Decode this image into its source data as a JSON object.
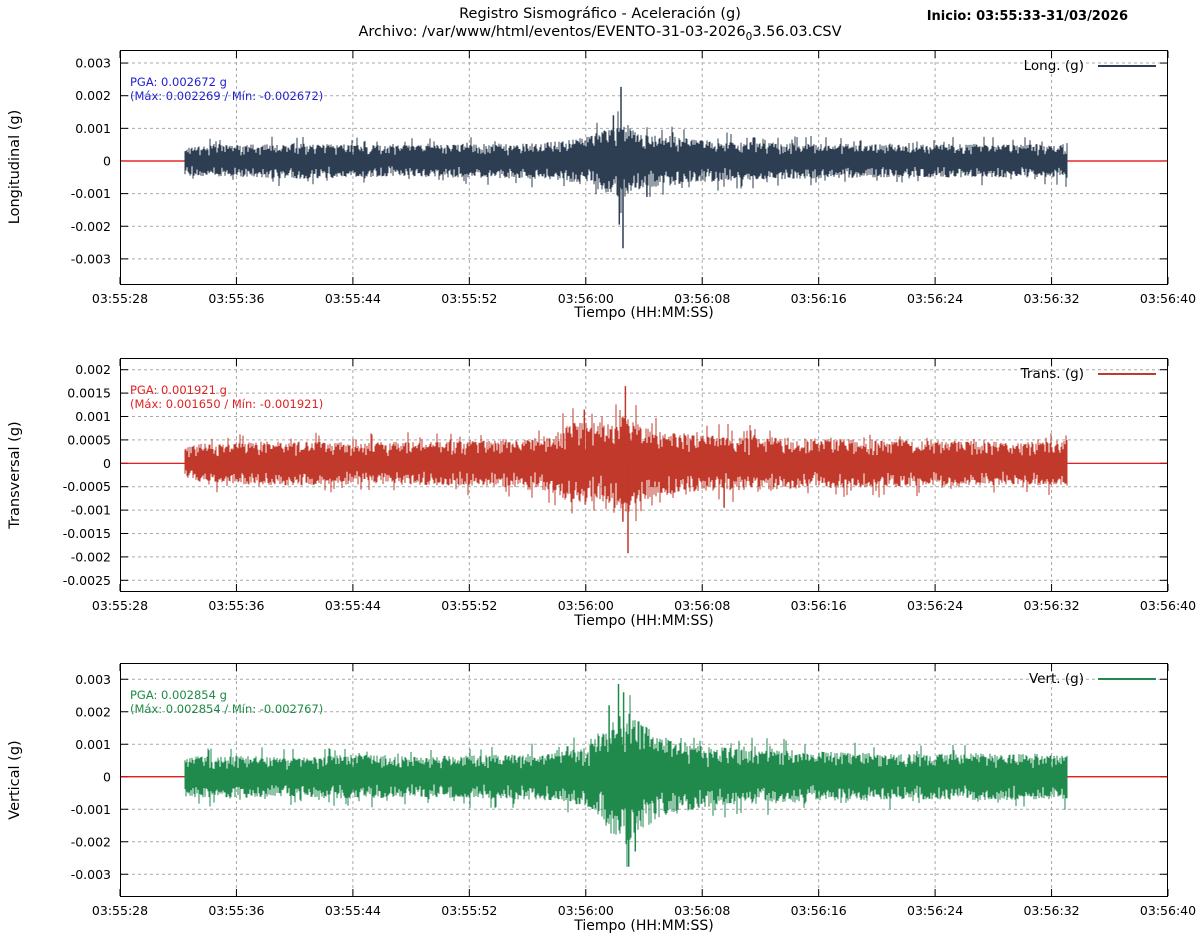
{
  "header": {
    "title": "Registro Sismográfico - Aceleración (g)",
    "subtitle_prefix": "Archivo: /var/www/html/eventos/EVENTO-31-03-2026",
    "subtitle_sub": "0",
    "subtitle_suffix": "3.56.03.CSV",
    "inicio": "Inicio: 03:55:33-31/03/2026"
  },
  "x_axis": {
    "label": "Tiempo (HH:MM:SS)",
    "tick_labels": [
      "03:55:28",
      "03:55:36",
      "03:55:44",
      "03:55:52",
      "03:56:00",
      "03:56:08",
      "03:56:16",
      "03:56:24",
      "03:56:32",
      "03:56:40"
    ],
    "tick_seconds": [
      0,
      8,
      16,
      24,
      32,
      40,
      48,
      56,
      64,
      72
    ],
    "range_s": [
      0,
      72
    ],
    "start_time": "03:55:28"
  },
  "style": {
    "grid_color": "#a9a9a9",
    "zero_line_color": "#e10000",
    "border_color": "#000000",
    "background": "#ffffff"
  },
  "chart_data": [
    {
      "type": "line",
      "name": "longitudinal",
      "title": "Long. (g)",
      "legend": "Long. (g)",
      "ylabel": "Longitudinal (g)",
      "xlabel": "Tiempo (HH:MM:SS)",
      "color": "#2e3e52",
      "annotation_color": "#2222cc",
      "pga_line1": "PGA: 0.002672 g",
      "pga_line2": "(Máx: 0.002269 / Mín: -0.002672)",
      "pga": 0.002672,
      "max": 0.002269,
      "min": -0.002672,
      "y_tick_labels": [
        "0.003",
        "0.002",
        "0.001",
        "0",
        "-0.001",
        "-0.002",
        "-0.003"
      ],
      "y_tick_values": [
        0.003,
        0.002,
        0.001,
        0,
        -0.001,
        -0.002,
        -0.003
      ],
      "ylim": [
        -0.0038,
        0.0034
      ],
      "signal_start_s": 4.4,
      "signal_end_s": 65.1,
      "envelope_g_vs_s": [
        [
          4.4,
          0.00045
        ],
        [
          8,
          0.0005
        ],
        [
          12,
          0.00055
        ],
        [
          16,
          0.0005
        ],
        [
          20,
          0.00048
        ],
        [
          24,
          0.00052
        ],
        [
          28,
          0.00055
        ],
        [
          30,
          0.0006
        ],
        [
          31.5,
          0.0007
        ],
        [
          33,
          0.0009
        ],
        [
          34,
          0.0011
        ],
        [
          34.6,
          0.0012
        ],
        [
          35.5,
          0.0009
        ],
        [
          37,
          0.0008
        ],
        [
          39,
          0.0007
        ],
        [
          42,
          0.0006
        ],
        [
          46,
          0.00055
        ],
        [
          50,
          0.00052
        ],
        [
          54,
          0.0005
        ],
        [
          58,
          0.00052
        ],
        [
          62,
          0.0005
        ],
        [
          65.1,
          0.00055
        ]
      ],
      "spikes_g_at_s": [
        [
          34.42,
          0.002269
        ],
        [
          34.56,
          -0.002672
        ],
        [
          34.3,
          -0.00195
        ],
        [
          33.9,
          0.0014
        ],
        [
          36.2,
          -0.0011
        ]
      ],
      "seed": 11
    },
    {
      "type": "line",
      "name": "transversal",
      "title": "Trans. (g)",
      "legend": "Trans. (g)",
      "ylabel": "Transversal (g)",
      "xlabel": "Tiempo (HH:MM:SS)",
      "color": "#c0392b",
      "annotation_color": "#e02222",
      "pga_line1": "PGA: 0.001921 g",
      "pga_line2": "(Máx: 0.001650 / Mín: -0.001921)",
      "pga": 0.001921,
      "max": 0.00165,
      "min": -0.001921,
      "y_tick_labels": [
        "0.002",
        "0.0015",
        "0.001",
        "0.0005",
        "0",
        "-0.0005",
        "-0.001",
        "-0.0015",
        "-0.002",
        "-0.0025"
      ],
      "y_tick_values": [
        0.002,
        0.0015,
        0.001,
        0.0005,
        0,
        -0.0005,
        -0.001,
        -0.0015,
        -0.002,
        -0.0025
      ],
      "ylim": [
        -0.00275,
        0.00225
      ],
      "signal_start_s": 4.4,
      "signal_end_s": 65.1,
      "envelope_g_vs_s": [
        [
          4.4,
          0.0004
        ],
        [
          8,
          0.00045
        ],
        [
          12,
          0.00048
        ],
        [
          16,
          0.00045
        ],
        [
          20,
          0.00046
        ],
        [
          24,
          0.00048
        ],
        [
          28,
          0.00052
        ],
        [
          29.5,
          0.0006
        ],
        [
          31,
          0.00085
        ],
        [
          32,
          0.00095
        ],
        [
          33,
          0.0008
        ],
        [
          34,
          0.0009
        ],
        [
          34.8,
          0.00105
        ],
        [
          35.6,
          0.00085
        ],
        [
          37,
          0.0007
        ],
        [
          39,
          0.00062
        ],
        [
          42,
          0.00058
        ],
        [
          46,
          0.00055
        ],
        [
          50,
          0.00052
        ],
        [
          54,
          0.0005
        ],
        [
          58,
          0.00048
        ],
        [
          62,
          0.00046
        ],
        [
          65.1,
          0.0005
        ]
      ],
      "spikes_g_at_s": [
        [
          34.72,
          0.00165
        ],
        [
          34.9,
          -0.001921
        ],
        [
          34.55,
          -0.00125
        ],
        [
          31.9,
          0.00115
        ],
        [
          41.5,
          -0.00095
        ]
      ],
      "seed": 22
    },
    {
      "type": "line",
      "name": "vertical",
      "title": "Vert. (g)",
      "legend": "Vert. (g)",
      "ylabel": "Vertical (g)",
      "xlabel": "Tiempo (HH:MM:SS)",
      "color": "#1f8a4c",
      "annotation_color": "#1e8a45",
      "pga_line1": "PGA: 0.002854 g",
      "pga_line2": "(Máx: 0.002854 / Mín: -0.002767)",
      "pga": 0.002854,
      "max": 0.002854,
      "min": -0.002767,
      "y_tick_labels": [
        "0.003",
        "0.002",
        "0.001",
        "0",
        "-0.001",
        "-0.002",
        "-0.003"
      ],
      "y_tick_values": [
        0.003,
        0.002,
        0.001,
        0,
        -0.001,
        -0.002,
        -0.003
      ],
      "ylim": [
        -0.0037,
        0.0035
      ],
      "signal_start_s": 4.4,
      "signal_end_s": 65.1,
      "envelope_g_vs_s": [
        [
          4.4,
          0.00062
        ],
        [
          8,
          0.00065
        ],
        [
          12,
          0.0006
        ],
        [
          16,
          0.00068
        ],
        [
          20,
          0.00062
        ],
        [
          24,
          0.00066
        ],
        [
          28,
          0.0007
        ],
        [
          30,
          0.00075
        ],
        [
          32,
          0.0009
        ],
        [
          33,
          0.0013
        ],
        [
          33.8,
          0.0018
        ],
        [
          34.5,
          0.0021
        ],
        [
          35.2,
          0.0019
        ],
        [
          36,
          0.0016
        ],
        [
          37,
          0.0013
        ],
        [
          38.5,
          0.0011
        ],
        [
          40,
          0.00095
        ],
        [
          43,
          0.00085
        ],
        [
          46,
          0.0008
        ],
        [
          50,
          0.00075
        ],
        [
          54,
          0.0007
        ],
        [
          58,
          0.00072
        ],
        [
          62,
          0.00072
        ],
        [
          65.1,
          0.0007
        ]
      ],
      "spikes_g_at_s": [
        [
          34.25,
          0.002854
        ],
        [
          34.95,
          -0.002767
        ],
        [
          34.6,
          0.0026
        ],
        [
          35.4,
          -0.0023
        ],
        [
          33.6,
          0.0022
        ]
      ],
      "seed": 33
    }
  ]
}
